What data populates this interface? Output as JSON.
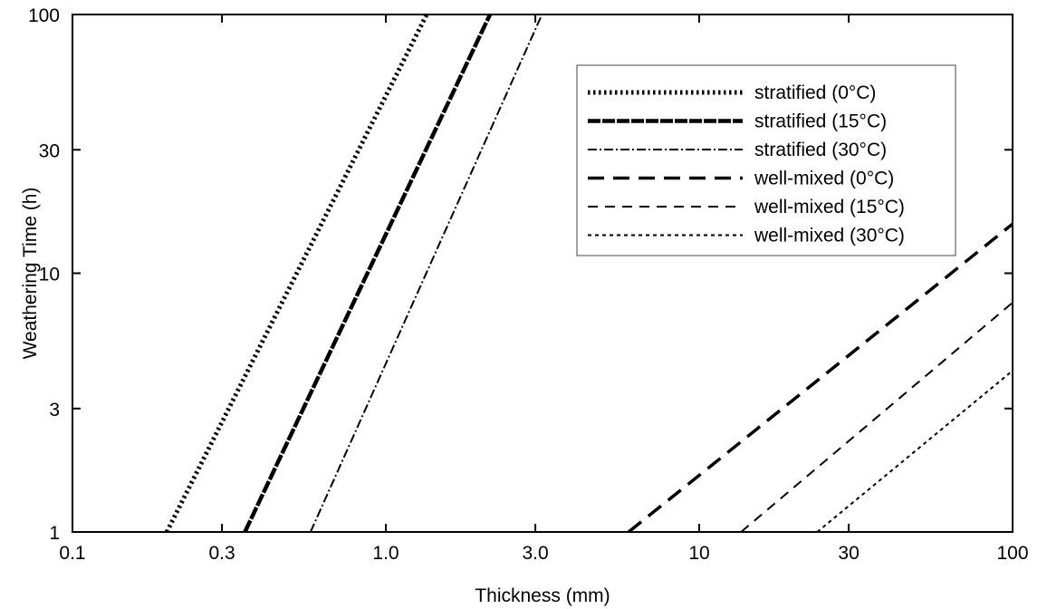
{
  "chart_data": {
    "type": "line",
    "title": "",
    "xlabel": "Thickness (mm)",
    "ylabel": "Weathering Time (h)",
    "xscale": "log",
    "yscale": "log",
    "xlim": [
      0.1,
      100
    ],
    "ylim": [
      1,
      100
    ],
    "xticks": [
      0.1,
      0.3,
      1.0,
      3.0,
      10,
      30,
      100
    ],
    "xtick_labels": [
      "0.1",
      "0.3",
      "1.0",
      "3.0",
      "10",
      "30",
      "100"
    ],
    "yticks": [
      1,
      3,
      10,
      30,
      100
    ],
    "ytick_labels": [
      "1",
      "3",
      "10",
      "30",
      "100"
    ],
    "grid": false,
    "legend_position": "top-right",
    "series": [
      {
        "name": "stratified (0°C)",
        "style": "dotted-heavy",
        "x": [
          0.2,
          1.35
        ],
        "y": [
          1,
          100
        ]
      },
      {
        "name": "stratified (15°C)",
        "style": "long-dash-heavy",
        "x": [
          0.355,
          2.15
        ],
        "y": [
          1,
          100
        ]
      },
      {
        "name": "stratified (30°C)",
        "style": "dash-dot",
        "x": [
          0.575,
          3.15
        ],
        "y": [
          1,
          100
        ]
      },
      {
        "name": "well-mixed (0°C)",
        "style": "long-dash",
        "x": [
          5.95,
          100
        ],
        "y": [
          1,
          15.5
        ]
      },
      {
        "name": "well-mixed (15°C)",
        "style": "dashed",
        "x": [
          13.6,
          100
        ],
        "y": [
          1,
          7.7
        ]
      },
      {
        "name": "well-mixed (30°C)",
        "style": "fine-dotted",
        "x": [
          23.8,
          100
        ],
        "y": [
          1,
          4.2
        ]
      }
    ]
  }
}
